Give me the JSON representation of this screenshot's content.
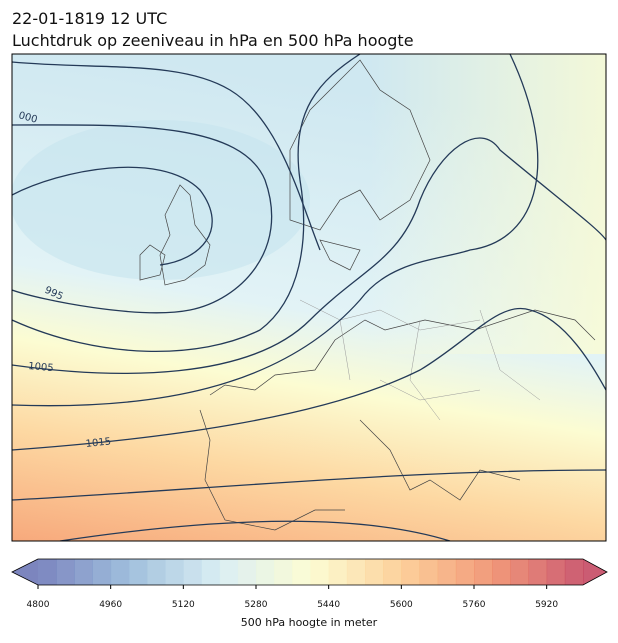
{
  "header": {
    "date_line": "22-01-1819 12 UTC",
    "title": "Luchtdruk op zeeniveau in hPa en 500 hPa hoogte"
  },
  "map": {
    "isobar_labels": [
      "000",
      "995",
      "1005",
      "1015"
    ]
  },
  "colorbar": {
    "lim": [
      4800,
      6000
    ],
    "step": 40,
    "ticks": [
      4800,
      4960,
      5120,
      5280,
      5440,
      5600,
      5760,
      5920
    ],
    "label": "500 hPa hoogte in meter",
    "colormap": [
      "#6570b3",
      "#8fb4d6",
      "#d4ebf2",
      "#fcfccc",
      "#fcc98a",
      "#ef8763",
      "#c2405a"
    ]
  }
}
